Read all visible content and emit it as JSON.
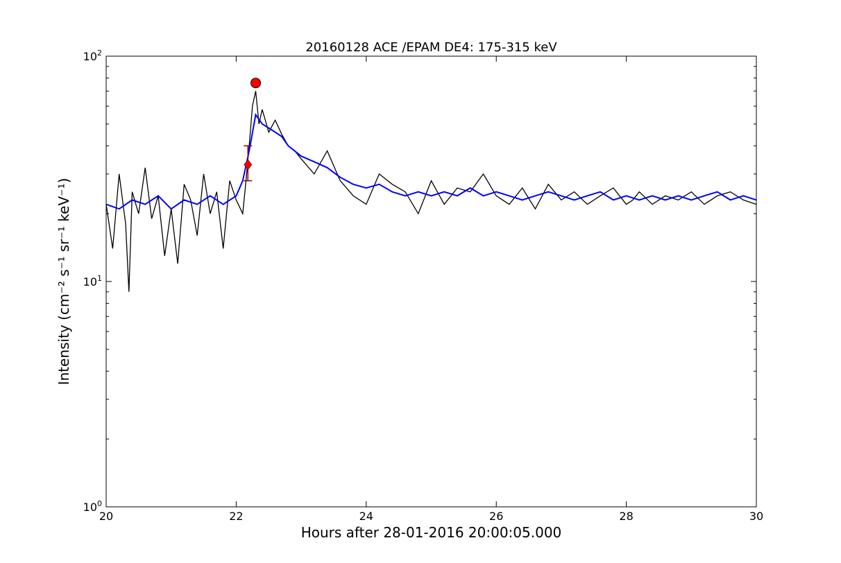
{
  "chart_data": {
    "type": "line",
    "title": "20160128 ACE /EPAM DE4: 175-315 keV",
    "xlabel": "Hours after 28-01-2016 20:00:05.000",
    "ylabel": "Intensity (cm⁻² s⁻¹ sr⁻¹ keV⁻¹)",
    "xlim": [
      20,
      30
    ],
    "ylim": [
      1,
      100
    ],
    "yscale": "log",
    "grid": false,
    "x_ticks": [
      {
        "value": 20,
        "label": "20"
      },
      {
        "value": 22,
        "label": "22"
      },
      {
        "value": 24,
        "label": "24"
      },
      {
        "value": 26,
        "label": "26"
      },
      {
        "value": 28,
        "label": "28"
      },
      {
        "value": 30,
        "label": "30"
      }
    ],
    "y_ticks": [
      {
        "value": 1,
        "base": "10",
        "exp": "0"
      },
      {
        "value": 10,
        "base": "10",
        "exp": "1"
      },
      {
        "value": 100,
        "base": "10",
        "exp": "2"
      }
    ],
    "series": [
      {
        "color": "#000000",
        "x": [
          20.0,
          20.1,
          20.2,
          20.3,
          20.35,
          20.4,
          20.5,
          20.6,
          20.7,
          20.8,
          20.9,
          21.0,
          21.1,
          21.2,
          21.3,
          21.4,
          21.5,
          21.6,
          21.7,
          21.8,
          21.9,
          22.0,
          22.1,
          22.15,
          22.2,
          22.25,
          22.3,
          22.35,
          22.4,
          22.5,
          22.6,
          22.7,
          22.8,
          22.9,
          23.0,
          23.2,
          23.4,
          23.6,
          23.8,
          24.0,
          24.2,
          24.4,
          24.6,
          24.8,
          25.0,
          25.2,
          25.4,
          25.6,
          25.8,
          26.0,
          26.2,
          26.4,
          26.6,
          26.8,
          27.0,
          27.2,
          27.4,
          27.6,
          27.8,
          28.0,
          28.1,
          28.2,
          28.4,
          28.6,
          28.8,
          29.0,
          29.2,
          29.4,
          29.6,
          29.8,
          30.0
        ],
        "values": [
          22,
          14,
          30,
          18,
          9,
          25,
          20,
          32,
          19,
          24,
          13,
          21,
          12,
          27,
          23,
          16,
          30,
          20,
          25,
          14,
          28,
          23,
          20,
          28,
          40,
          60,
          70,
          50,
          58,
          46,
          52,
          45,
          40,
          38,
          35,
          30,
          38,
          28,
          24,
          22,
          30,
          27,
          25,
          20,
          28,
          22,
          26,
          25,
          30,
          24,
          22,
          26,
          21,
          27,
          23,
          25,
          22,
          24,
          26,
          22,
          23,
          25,
          22,
          24,
          23,
          25,
          22,
          24,
          25,
          23,
          22
        ]
      },
      {
        "color": "#0000ff",
        "x": [
          20.0,
          20.2,
          20.4,
          20.6,
          20.8,
          21.0,
          21.2,
          21.4,
          21.6,
          21.8,
          22.0,
          22.1,
          22.2,
          22.3,
          22.4,
          22.5,
          22.6,
          22.7,
          22.8,
          23.0,
          23.2,
          23.4,
          23.6,
          23.8,
          24.0,
          24.2,
          24.4,
          24.6,
          24.8,
          25.0,
          25.2,
          25.4,
          25.6,
          25.8,
          26.0,
          26.2,
          26.4,
          26.6,
          26.8,
          27.0,
          27.2,
          27.4,
          27.6,
          27.8,
          28.0,
          28.2,
          28.4,
          28.6,
          28.8,
          29.0,
          29.2,
          29.4,
          29.6,
          29.8,
          30.0
        ],
        "values": [
          22,
          21,
          23,
          22,
          24,
          21,
          23,
          22,
          24,
          22,
          24,
          28,
          38,
          55,
          50,
          48,
          46,
          44,
          40,
          36,
          34,
          32,
          29,
          27,
          26,
          27,
          25,
          24,
          25,
          24,
          25,
          24,
          26,
          24,
          25,
          24,
          23,
          24,
          25,
          24,
          23,
          24,
          25,
          23,
          24,
          23,
          24,
          23,
          24,
          23,
          24,
          25,
          23,
          24,
          23
        ]
      }
    ],
    "markers": [
      {
        "shape": "circle",
        "x": 22.3,
        "y": 76,
        "color": "#ff0000"
      },
      {
        "shape": "diamond",
        "x": 22.18,
        "y": 33,
        "color": "#ff0000",
        "err_low": 28,
        "err_high": 40
      }
    ]
  }
}
